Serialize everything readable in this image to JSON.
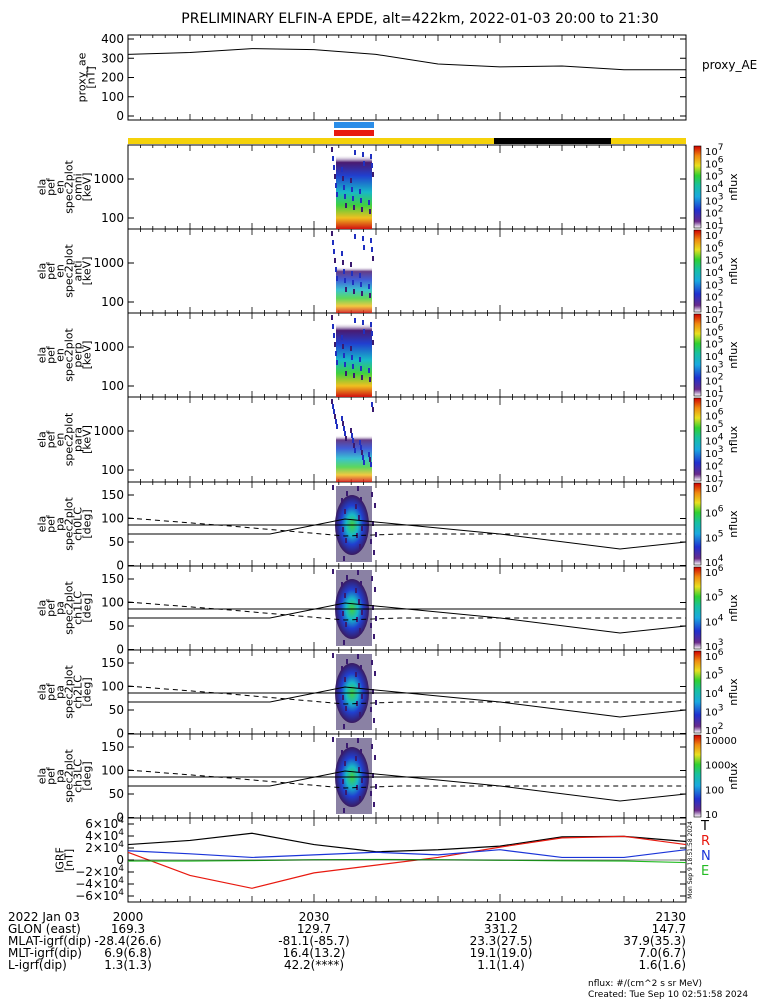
{
  "title": "PRELIMINARY ELFIN-A EPDE, alt=422km, 2022-01-03 20:00 to 21:30",
  "colors": {
    "bar_yellow": "#f5d20a",
    "bar_black": "#000000",
    "bar_blue": "#2a8de8",
    "bar_red": "#e8190f",
    "grf_total": "#000000",
    "grf_x": "#e8190f",
    "grf_y": "#1a34d8",
    "grf_z": "#22bb22"
  },
  "panels": [
    {
      "label_lines": [
        "proxy_ae",
        "[nT]"
      ],
      "right_label": "proxy_AE",
      "yticks": [
        "400",
        "300",
        "200",
        "100",
        "0"
      ],
      "colorbar": null
    },
    {
      "label_lines": [
        "ela",
        "pef",
        "en",
        "spec2plot",
        "omni",
        "[keV]"
      ],
      "yticks": [
        "1000",
        "100"
      ],
      "colorbar": {
        "label": "nflux",
        "ticks": [
          "10^7",
          "10^6",
          "10^5",
          "10^4",
          "10^3",
          "10^2",
          "10^1"
        ]
      }
    },
    {
      "label_lines": [
        "ela",
        "pef",
        "en",
        "spec2plot",
        "anti",
        "[keV]"
      ],
      "yticks": [
        "1000",
        "100"
      ],
      "colorbar": {
        "label": "nflux",
        "ticks": [
          "10^7",
          "10^6",
          "10^5",
          "10^4",
          "10^3",
          "10^2",
          "10^1"
        ]
      }
    },
    {
      "label_lines": [
        "ela",
        "pef",
        "en",
        "spec2plot",
        "perp",
        "[keV]"
      ],
      "yticks": [
        "1000",
        "100"
      ],
      "colorbar": {
        "label": "nflux",
        "ticks": [
          "10^7",
          "10^6",
          "10^5",
          "10^4",
          "10^3",
          "10^2",
          "10^1"
        ]
      }
    },
    {
      "label_lines": [
        "ela",
        "pef",
        "en",
        "spec2plot",
        "para",
        "[keV]"
      ],
      "yticks": [
        "1000",
        "100"
      ],
      "colorbar": {
        "label": "nflux",
        "ticks": [
          "10^7",
          "10^6",
          "10^5",
          "10^4",
          "10^3",
          "10^2",
          "10^1"
        ]
      }
    },
    {
      "label_lines": [
        "ela",
        "pef",
        "pa",
        "spec2plot",
        "ch0LC",
        "[deg]"
      ],
      "yticks": [
        "150",
        "100",
        "50",
        "0"
      ],
      "colorbar": {
        "label": "nflux",
        "ticks": [
          "10^7",
          "10^6",
          "10^5",
          "10^4"
        ]
      }
    },
    {
      "label_lines": [
        "ela",
        "pef",
        "pa",
        "spec2plot",
        "ch1LC",
        "[deg]"
      ],
      "yticks": [
        "150",
        "100",
        "50",
        "0"
      ],
      "colorbar": {
        "label": "nflux",
        "ticks": [
          "10^6",
          "10^5",
          "10^4",
          "10^3"
        ]
      }
    },
    {
      "label_lines": [
        "ela",
        "pef",
        "pa",
        "spec2plot",
        "ch2LC",
        "[deg]"
      ],
      "yticks": [
        "150",
        "100",
        "50",
        "0"
      ],
      "colorbar": {
        "label": "nflux",
        "ticks": [
          "10^6",
          "10^5",
          "10^4",
          "10^3",
          "10^2"
        ]
      }
    },
    {
      "label_lines": [
        "ela",
        "pef",
        "pa",
        "spec2plot",
        "ch3LC",
        "[deg]"
      ],
      "yticks": [
        "150",
        "100",
        "50",
        "0"
      ],
      "colorbar": {
        "label": "nflux",
        "ticks": [
          "10000",
          "1000",
          "100",
          "10"
        ]
      }
    },
    {
      "label_lines": [
        "IGRF",
        "[nT]"
      ],
      "yticks": [
        "6×10^4",
        "4×10^4",
        "2×10^4",
        "0",
        "−2×10^4",
        "−4×10^4",
        "−6×10^4"
      ],
      "colorbar": null,
      "legend": [
        "T",
        "R",
        "N",
        "E"
      ],
      "side_note": "Mon Sep 9 18:51:58 2024"
    }
  ],
  "footer": {
    "rows": [
      {
        "label": "2022 Jan 03",
        "values": [
          "2000",
          "2030",
          "2100",
          "2130"
        ]
      },
      {
        "label": "GLON (east)",
        "values": [
          "169.3",
          "129.7",
          "331.2",
          "147.7"
        ]
      },
      {
        "label": "MLAT-igrf(dip)",
        "values": [
          "-28.4(26.6)",
          "-81.1(-85.7)",
          "23.3(27.5)",
          "37.9(35.3)"
        ]
      },
      {
        "label": "MLT-igrf(dip)",
        "values": [
          "6.9(6.8)",
          "16.4(13.2)",
          "19.1(19.0)",
          "7.0(6.7)"
        ]
      },
      {
        "label": "L-igrf(dip)",
        "values": [
          "1.3(1.3)",
          "42.2(****)",
          "1.1(1.4)",
          "1.6(1.6)"
        ]
      }
    ],
    "units_note": "nflux: #/(cm^2 s sr MeV)",
    "created_note": "Created: Tue Sep 10 02:51:58 2024"
  },
  "chart_data": {
    "type": "line",
    "x_ticks": [
      "2000",
      "2030",
      "2100",
      "2130"
    ],
    "proxy_ae": {
      "ylim": [
        0,
        400
      ],
      "x": [
        "20:00",
        "20:10",
        "20:20",
        "20:30",
        "20:40",
        "20:50",
        "21:00",
        "21:10",
        "21:20",
        "21:30"
      ],
      "values": [
        320,
        330,
        350,
        345,
        320,
        270,
        255,
        260,
        240,
        240
      ]
    },
    "igrf": {
      "ylim": [
        -70000,
        70000
      ],
      "x": [
        "20:00",
        "20:10",
        "20:20",
        "20:30",
        "20:40",
        "20:50",
        "21:00",
        "21:10",
        "21:20",
        "21:30"
      ],
      "series": [
        {
          "name": "T",
          "values": [
            30000,
            38000,
            52000,
            30000,
            16000,
            20000,
            27000,
            45000,
            46000,
            36000
          ]
        },
        {
          "name": "R",
          "values": [
            15000,
            -30000,
            -55000,
            -25000,
            -10000,
            5000,
            25000,
            43000,
            46000,
            30000
          ]
        },
        {
          "name": "N",
          "values": [
            18000,
            12000,
            5000,
            10000,
            15000,
            10000,
            20000,
            5000,
            5000,
            20000
          ]
        },
        {
          "name": "E",
          "values": [
            -2000,
            -2000,
            -1000,
            500,
            1000,
            500,
            -500,
            -1500,
            -2000,
            -5000
          ]
        }
      ]
    }
  }
}
